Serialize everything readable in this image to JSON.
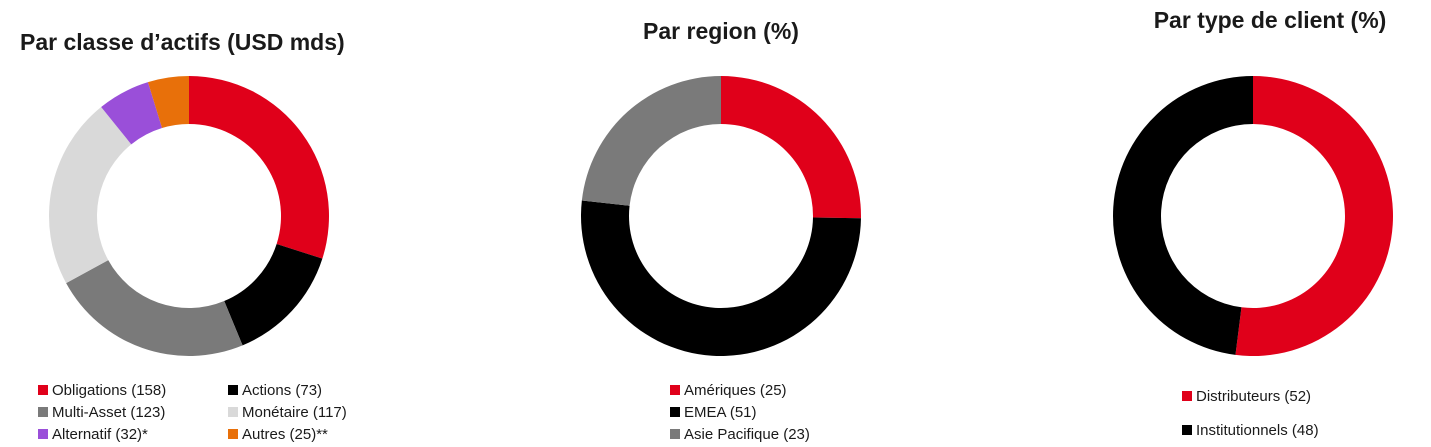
{
  "chart_data": [
    {
      "type": "donut",
      "title": "Par classe d’actifs (USD mds)",
      "categories": [
        "Obligations (158)",
        "Actions (73)",
        "Multi-Asset (123)",
        "Monétaire (117)",
        "Alternatif (32)*",
        "Autres (25)**"
      ],
      "values": [
        158,
        73,
        123,
        117,
        32,
        25
      ],
      "colors": [
        "#e0001a",
        "#000000",
        "#7a7a7a",
        "#d9d9d9",
        "#9a4fd9",
        "#e8700a"
      ]
    },
    {
      "type": "donut",
      "title": "Par region (%)",
      "categories": [
        "Amériques (25)",
        "EMEA (51)",
        "Asie Pacifique (23)"
      ],
      "values": [
        25,
        51,
        23
      ],
      "colors": [
        "#e0001a",
        "#000000",
        "#7a7a7a"
      ]
    },
    {
      "type": "donut",
      "title": "Par type de client (%)",
      "categories": [
        "Distributeurs (52)",
        "Institutionnels (48)"
      ],
      "values": [
        52,
        48
      ],
      "colors": [
        "#e0001a",
        "#000000"
      ]
    }
  ]
}
